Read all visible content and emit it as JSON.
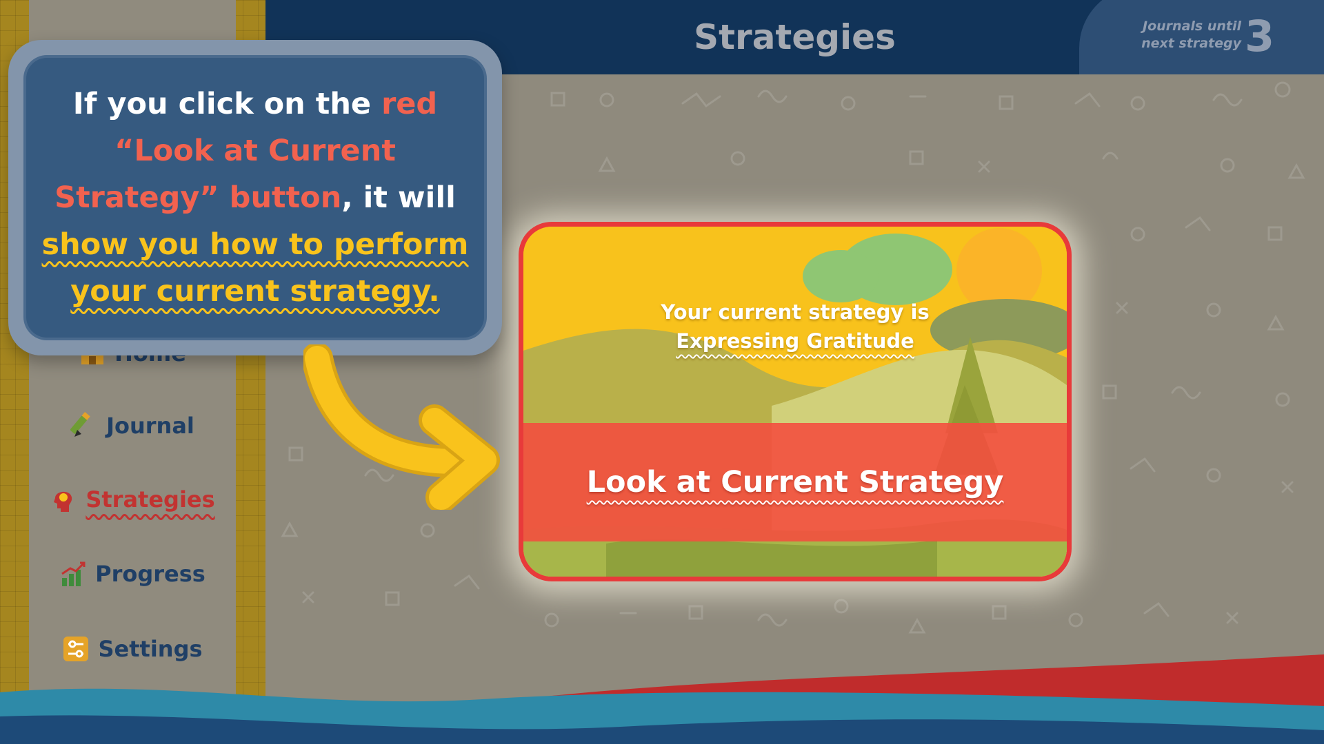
{
  "header": {
    "title": "Strategies",
    "journals_label_line1": "Journals until",
    "journals_label_line2": "next strategy",
    "journals_count": "3"
  },
  "sidebar": {
    "items": [
      {
        "label": "Home",
        "icon": "home-icon",
        "active": false
      },
      {
        "label": "Journal",
        "icon": "pencil-icon",
        "active": false
      },
      {
        "label": "Strategies",
        "icon": "head-bulb-icon",
        "active": true
      },
      {
        "label": "Progress",
        "icon": "bar-chart-icon",
        "active": false
      },
      {
        "label": "Settings",
        "icon": "sliders-icon",
        "active": false
      }
    ]
  },
  "card": {
    "prefix": "Your current strategy is",
    "strategy_name": "Expressing Gratitude",
    "button_label": "Look at Current Strategy"
  },
  "callout": {
    "part1": "If you click on the ",
    "part2_red": "red “Look at Current Strategy” button",
    "part3": ", it will ",
    "part4_yellow": "show you how to perform your current strategy."
  },
  "colors": {
    "header_bg": "#113358",
    "accent_red": "#e83a3a",
    "accent_yellow": "#f9c31c",
    "nav_text": "#1f3f66",
    "nav_active": "#c23331"
  }
}
